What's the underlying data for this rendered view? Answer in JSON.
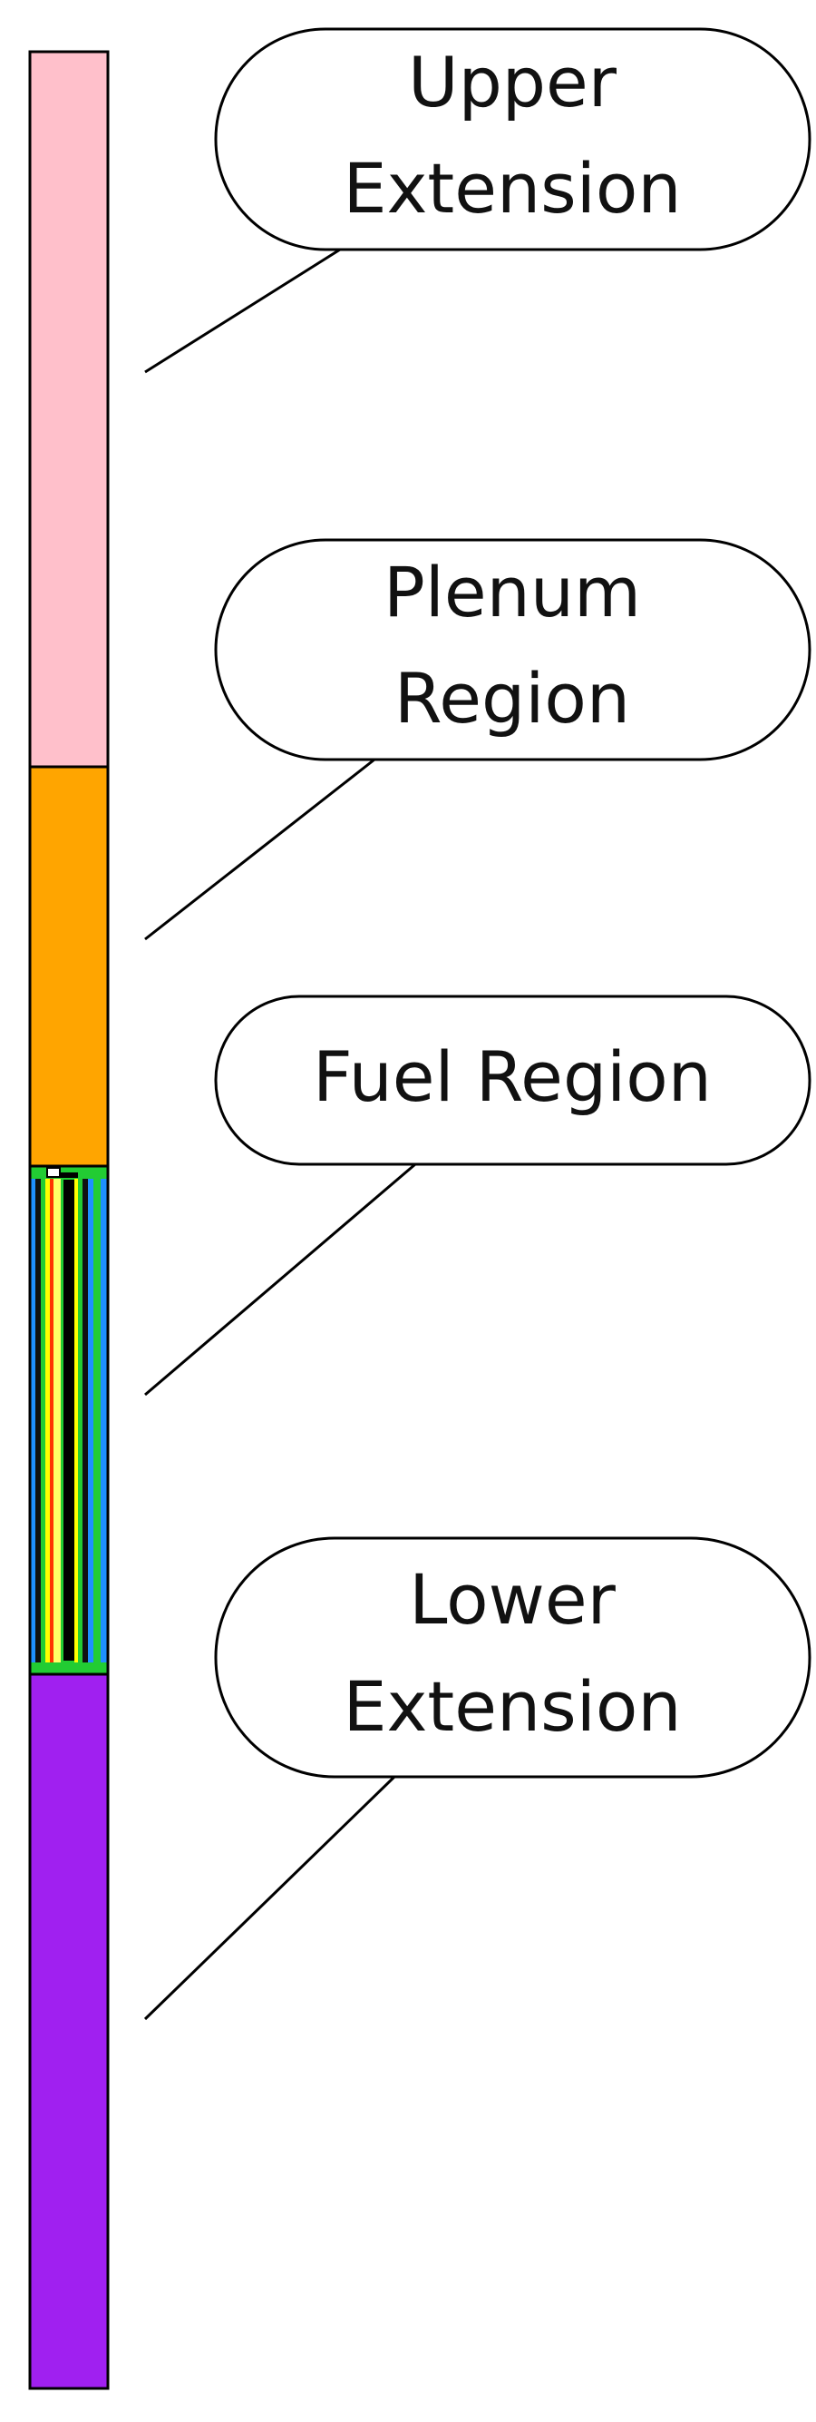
{
  "diagram": {
    "regions": [
      {
        "key": "upper_extension",
        "color": "#FFC0CB"
      },
      {
        "key": "plenum_region",
        "color": "#FFA500"
      },
      {
        "key": "fuel_region",
        "colors": [
          "#1E90FF",
          "#22CC33",
          "#FFFF00",
          "#FF3300",
          "#000000"
        ]
      },
      {
        "key": "lower_extension",
        "color": "#A020F0"
      }
    ],
    "callouts": [
      {
        "key": "upper_extension",
        "lines": [
          "Upper",
          "Extension"
        ]
      },
      {
        "key": "plenum_region",
        "lines": [
          "Plenum",
          "Region"
        ]
      },
      {
        "key": "fuel_region",
        "lines": [
          "Fuel Region"
        ]
      },
      {
        "key": "lower_extension",
        "lines": [
          "Lower",
          "Extension"
        ]
      }
    ]
  }
}
